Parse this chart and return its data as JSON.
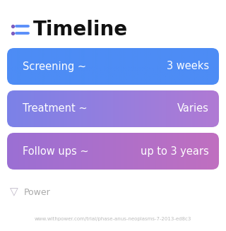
{
  "title": "Timeline",
  "bg_color": "#ffffff",
  "title_color": "#111111",
  "title_fontsize": 20,
  "icon_color_dot": "#7c5cbf",
  "icon_color_line": "#5b8ff9",
  "rows": [
    {
      "label": "Screening ~",
      "value": "3 weeks",
      "color_left": "#4d8cf5",
      "color_right": "#4d8cf5"
    },
    {
      "label": "Treatment ~",
      "value": "Varies",
      "color_left": "#7b82e8",
      "color_right": "#b07ad4"
    },
    {
      "label": "Follow ups ~",
      "value": "up to 3 years",
      "color_left": "#9b6fd4",
      "color_right": "#c070c0"
    }
  ],
  "text_color": "#ffffff",
  "label_fontsize": 10.5,
  "value_fontsize": 10.5,
  "footer_text": "Power",
  "footer_color": "#aaaaaa",
  "footer_fontsize": 9,
  "url_text": "www.withpower.com/trial/phase-anus-neoplasms-7-2013-ed8c3",
  "url_color": "#bbbbbb",
  "url_fontsize": 5.0
}
